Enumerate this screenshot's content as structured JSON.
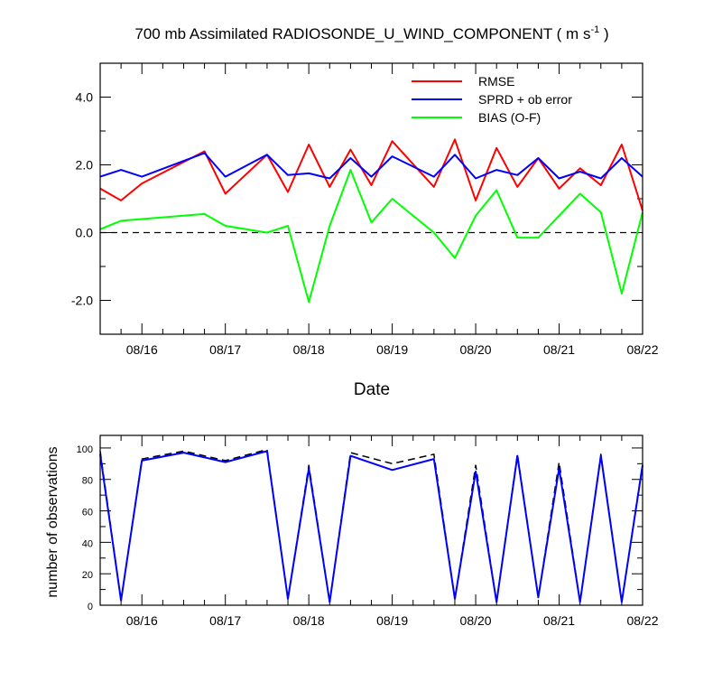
{
  "chart_data": [
    {
      "type": "line",
      "title": "700 mb Assimilated RADIOSONDE_U_WIND_COMPONENT ( m s",
      "title_units_sup": "-1",
      "title_close": " )",
      "xlabel": "Date",
      "ylabel": "",
      "ylim": [
        -3.0,
        5.0
      ],
      "yticks": [
        -2.0,
        0.0,
        2.0,
        4.0
      ],
      "ytick_labels": [
        "-2.0",
        "0.0",
        "2.0",
        "4.0"
      ],
      "xlim": [
        "08/15 12:00",
        "08/22 00:00"
      ],
      "xticks": [
        "08/16",
        "08/17",
        "08/18",
        "08/19",
        "08/20",
        "08/21",
        "08/22"
      ],
      "grid": false,
      "legend_position": "top-right",
      "zero_line": 0.0,
      "x": [
        "08/15 12:00",
        "08/15 18:00",
        "08/16 00:00",
        "08/16 18:00",
        "08/17 00:00",
        "08/17 12:00",
        "08/17 18:00",
        "08/18 00:00",
        "08/18 06:00",
        "08/18 12:00",
        "08/18 18:00",
        "08/19 00:00",
        "08/19 12:00",
        "08/19 18:00",
        "08/20 00:00",
        "08/20 06:00",
        "08/20 12:00",
        "08/20 18:00",
        "08/21 00:00",
        "08/21 06:00",
        "08/21 12:00",
        "08/21 18:00",
        "08/22 00:00"
      ],
      "series": [
        {
          "name": "RMSE",
          "color": "#ff0000",
          "values": [
            1.3,
            0.95,
            1.45,
            2.4,
            1.15,
            2.3,
            1.2,
            2.6,
            1.35,
            2.45,
            1.4,
            2.7,
            1.35,
            2.75,
            0.95,
            2.5,
            1.35,
            2.2,
            1.3,
            1.9,
            1.4,
            2.6,
            0.65
          ]
        },
        {
          "name": "SPRD + ob error",
          "color": "#0000ff",
          "values": [
            1.65,
            1.85,
            1.65,
            2.35,
            1.65,
            2.3,
            1.7,
            1.75,
            1.6,
            2.2,
            1.65,
            2.25,
            1.65,
            2.3,
            1.6,
            1.85,
            1.7,
            2.2,
            1.6,
            1.8,
            1.6,
            2.2,
            1.65
          ]
        },
        {
          "name": "BIAS (O-F)",
          "color": "#00ff00",
          "values": [
            0.1,
            0.35,
            0.4,
            0.55,
            0.2,
            0.0,
            0.2,
            -2.05,
            0.2,
            1.85,
            0.3,
            1.0,
            0.0,
            -0.75,
            0.5,
            1.25,
            -0.15,
            -0.15,
            0.5,
            1.15,
            0.6,
            -1.8,
            0.6
          ]
        }
      ]
    },
    {
      "type": "line",
      "title": "",
      "xlabel": "",
      "ylabel": "number of observations",
      "ylim": [
        0,
        108
      ],
      "yticks": [
        0,
        20,
        40,
        60,
        80,
        100
      ],
      "ytick_labels": [
        "0",
        "20",
        "40",
        "60",
        "80",
        "100"
      ],
      "xlim": [
        "08/15 12:00",
        "08/22 00:00"
      ],
      "xticks": [
        "08/16",
        "08/17",
        "08/18",
        "08/19",
        "08/20",
        "08/21",
        "08/22"
      ],
      "grid": false,
      "x": [
        "08/15 12:00",
        "08/15 18:00",
        "08/16 00:00",
        "08/16 12:00",
        "08/17 00:00",
        "08/17 12:00",
        "08/17 18:00",
        "08/18 00:00",
        "08/18 06:00",
        "08/18 12:00",
        "08/19 00:00",
        "08/19 12:00",
        "08/19 18:00",
        "08/20 00:00",
        "08/20 06:00",
        "08/20 12:00",
        "08/20 18:00",
        "08/21 00:00",
        "08/21 06:00",
        "08/21 12:00",
        "08/21 18:00",
        "08/22 00:00"
      ],
      "series": [
        {
          "color": "#000000",
          "dashed": true,
          "values": [
            98,
            3,
            93,
            98,
            92,
            99,
            4,
            89,
            2,
            97,
            90,
            96,
            4,
            89,
            2,
            96,
            5,
            91,
            2,
            96,
            2,
            90
          ]
        },
        {
          "color": "#0000ff",
          "dashed": false,
          "values": [
            96,
            3,
            92,
            97,
            91,
            98,
            4,
            87,
            2,
            95,
            86,
            93,
            4,
            85,
            2,
            95,
            5,
            87,
            2,
            95,
            2,
            89
          ]
        }
      ]
    }
  ]
}
